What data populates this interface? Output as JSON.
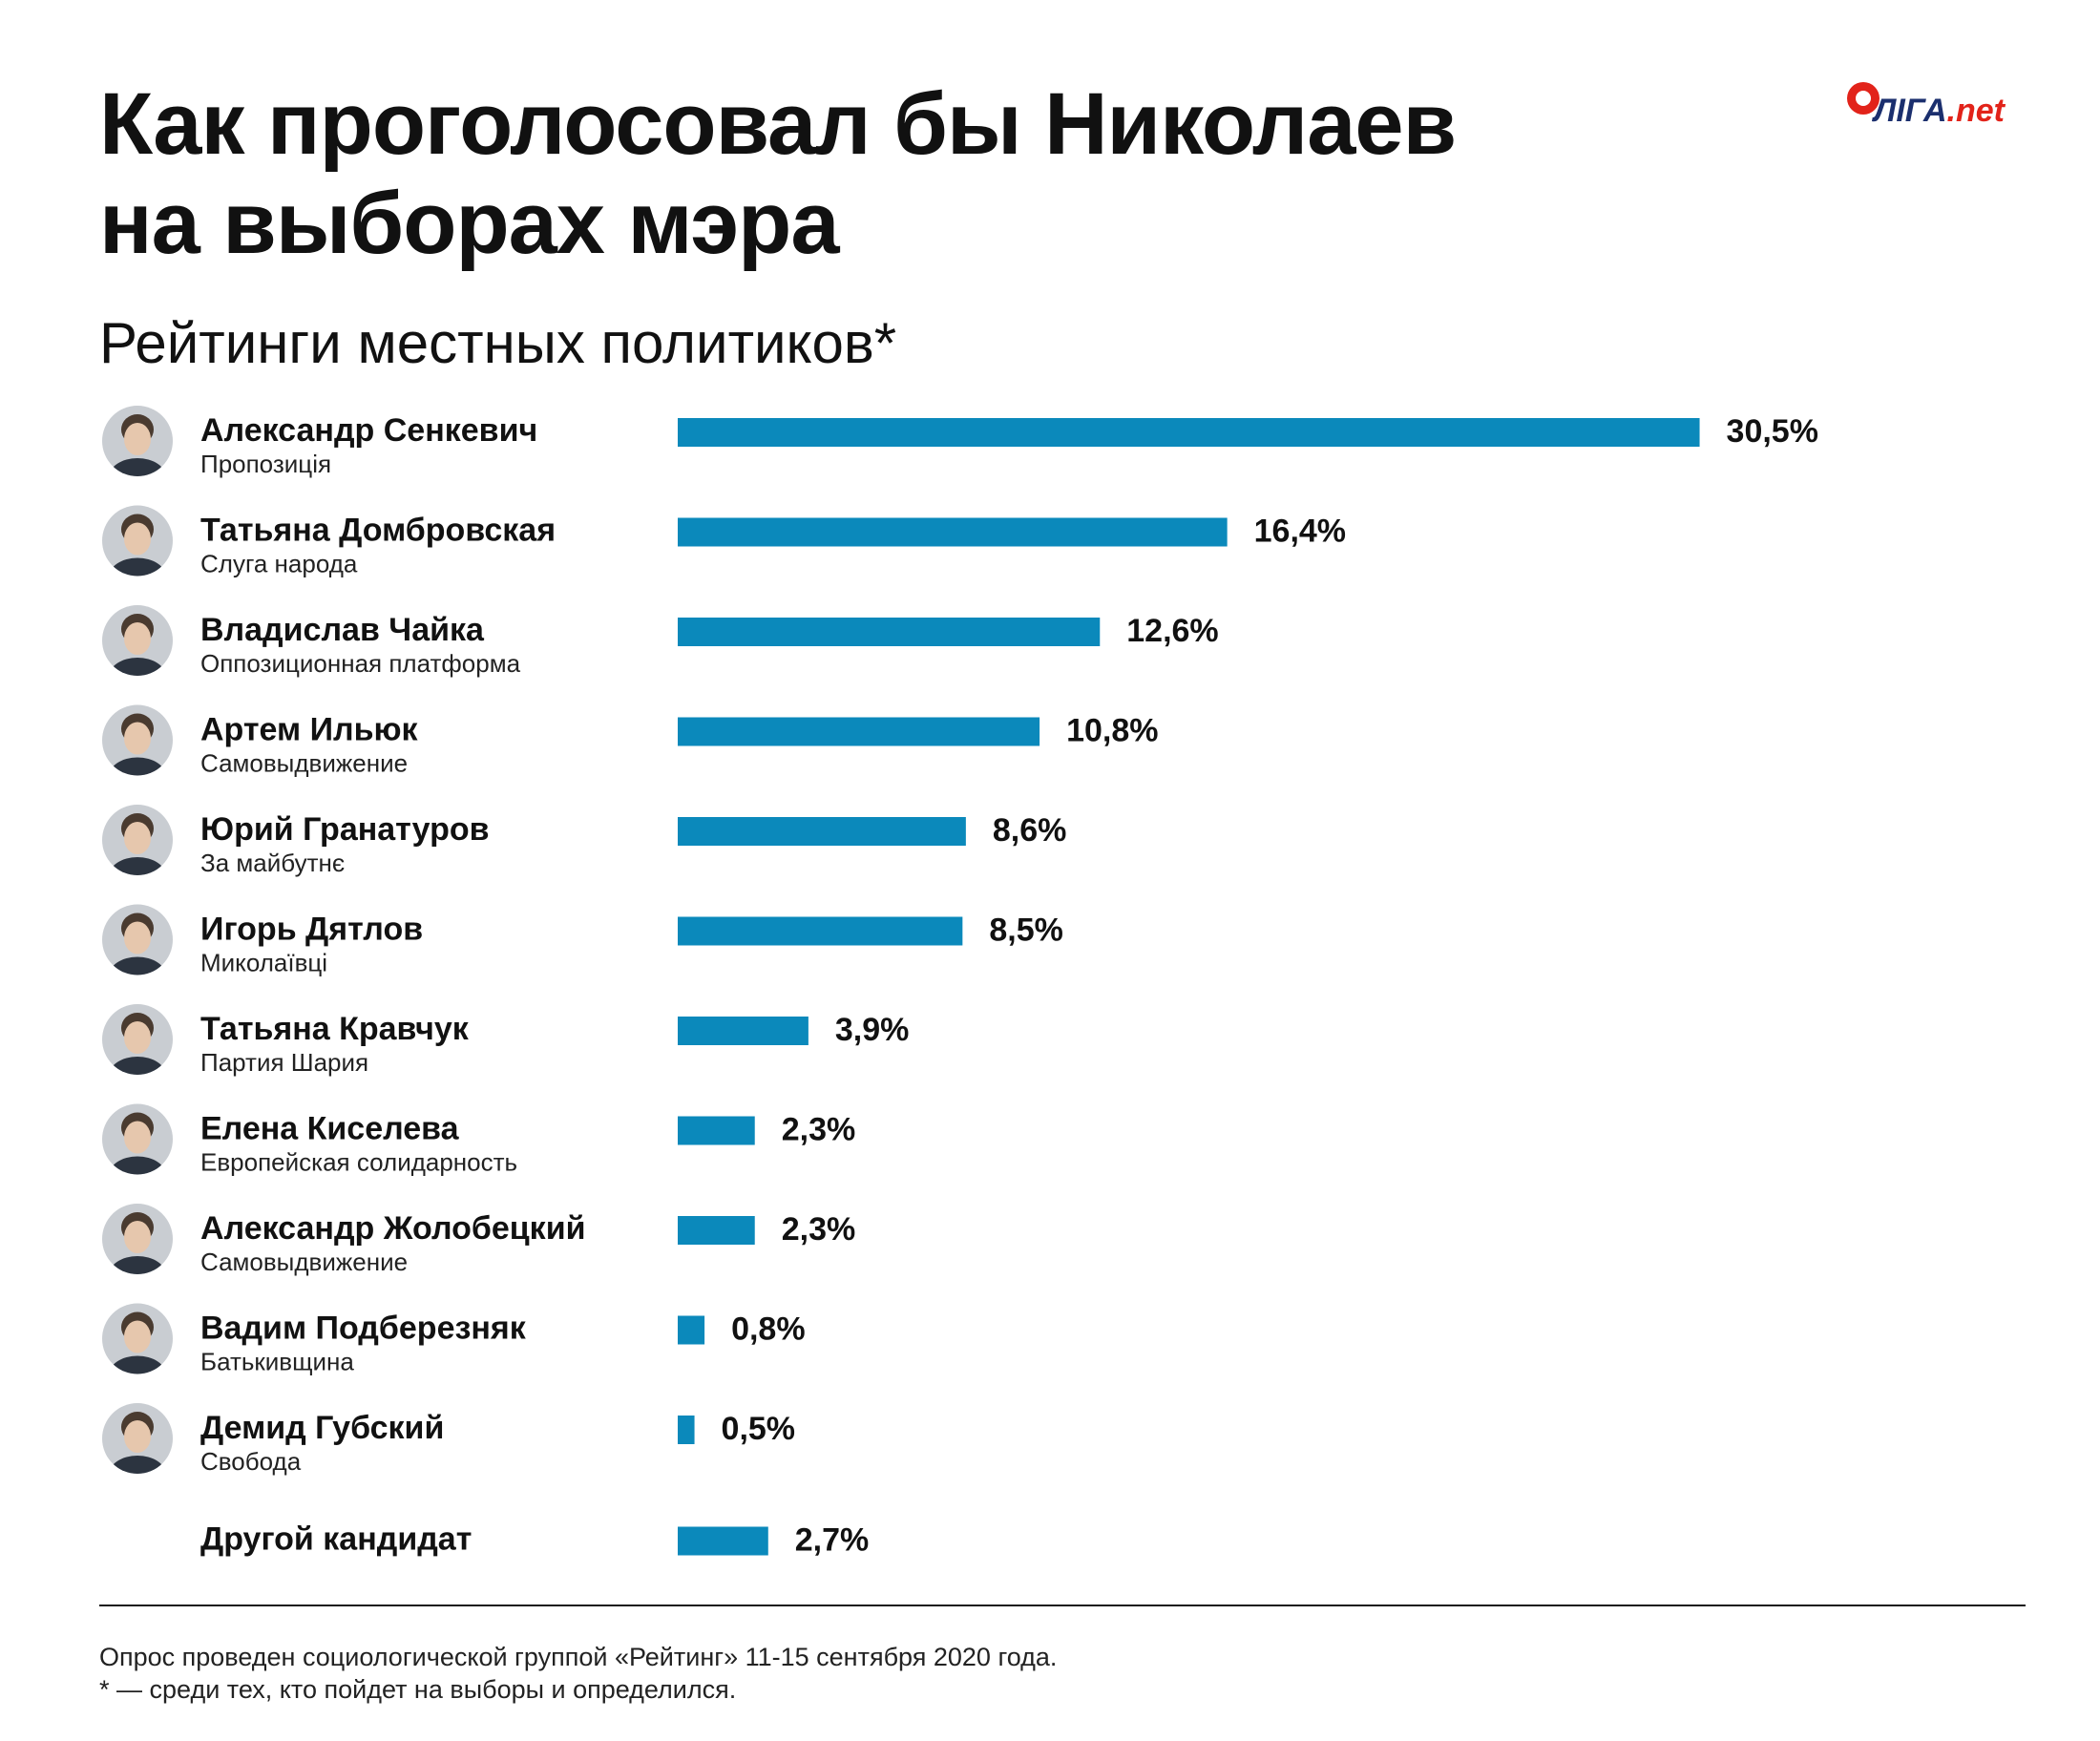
{
  "header": {
    "title_line1": "Как проголосовал бы Николаев",
    "title_line2": "на выборах мэра",
    "subtitle": "Рейтинги местных политиков*",
    "logo_name": "ЛІГА",
    "logo_tld": ".net"
  },
  "chart_data": {
    "type": "bar",
    "orientation": "horizontal",
    "value_unit": "%",
    "categories": [
      "Александр Сенкевич",
      "Татьяна Домбровская",
      "Владислав Чайка",
      "Артем Ильюк",
      "Юрий Гранатуров",
      "Игорь Дятлов",
      "Татьяна Кравчук",
      "Елена Киселева",
      "Александр Жолобецкий",
      "Вадим Подберезняк",
      "Демид Губский",
      "Другой кандидат"
    ],
    "parties": [
      "Пропозиція",
      "Слуга народа",
      "Оппозиционная платформа",
      "Самовыдвижение",
      "За майбутнє",
      "Миколаївці",
      "Партия Шария",
      "Европейская солидарность",
      "Самовыдвижение",
      "Батькивщина",
      "Свобода",
      ""
    ],
    "values": [
      30.5,
      16.4,
      12.6,
      10.8,
      8.6,
      8.5,
      3.9,
      2.3,
      2.3,
      0.8,
      0.5,
      2.7
    ],
    "value_labels": [
      "30,5%",
      "16,4%",
      "12,6%",
      "10,8%",
      "8,6%",
      "8,5%",
      "3,9%",
      "2,3%",
      "2,3%",
      "0,8%",
      "0,5%",
      "2,7%"
    ],
    "has_photo": [
      true,
      true,
      true,
      true,
      true,
      true,
      true,
      true,
      true,
      true,
      true,
      false
    ],
    "bar_color": "#0b89bb",
    "grid": false,
    "legend": "none"
  },
  "footer": {
    "note": "Опрос проведен социологической группой «Рейтинг» 11-15 сентября 2020 года.",
    "asterisk_note": "* — среди тех, кто пойдет на выборы и определился."
  }
}
